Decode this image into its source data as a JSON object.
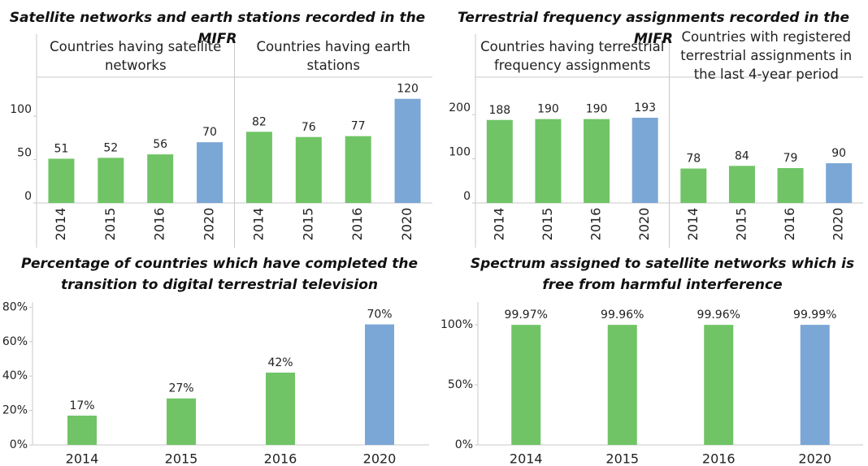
{
  "chart_data": [
    {
      "type": "bar",
      "title": "Satellite networks and earth stations recorded in the MIFR",
      "ylim": [
        0,
        145
      ],
      "yticks": [
        0,
        50,
        100
      ],
      "panels": [
        {
          "title": "Countries having satellite networks",
          "categories": [
            "2014",
            "2015",
            "2016",
            "2020"
          ],
          "values": [
            51,
            52,
            56,
            70
          ],
          "colors": [
            "#70c466",
            "#70c466",
            "#70c466",
            "#7ba7d6"
          ]
        },
        {
          "title": "Countries having earth stations",
          "categories": [
            "2014",
            "2015",
            "2016",
            "2020"
          ],
          "values": [
            82,
            76,
            77,
            120
          ],
          "colors": [
            "#70c466",
            "#70c466",
            "#70c466",
            "#7ba7d6"
          ]
        }
      ]
    },
    {
      "type": "bar",
      "title": "Terrestrial frequency assignments recorded in the MIFR",
      "ylim": [
        0,
        285
      ],
      "yticks": [
        0,
        100,
        200
      ],
      "panels": [
        {
          "title": "Countries having terrestrial frequency assignments",
          "categories": [
            "2014",
            "2015",
            "2016",
            "2020"
          ],
          "values": [
            188,
            190,
            190,
            193
          ],
          "colors": [
            "#70c466",
            "#70c466",
            "#70c466",
            "#7ba7d6"
          ]
        },
        {
          "title": "Countries with registered terrestrial assignments in the last 4-year period",
          "categories": [
            "2014",
            "2015",
            "2016",
            "2020"
          ],
          "values": [
            78,
            84,
            79,
            90
          ],
          "colors": [
            "#70c466",
            "#70c466",
            "#70c466",
            "#7ba7d6"
          ]
        }
      ]
    },
    {
      "type": "bar",
      "title": "Percentage of countries which have completed the transition to digital terrestrial television",
      "ylim": [
        0,
        83
      ],
      "yticks": [
        {
          "value": 0,
          "label": "0%"
        },
        {
          "value": 20,
          "label": "20%"
        },
        {
          "value": 40,
          "label": "40%"
        },
        {
          "value": 60,
          "label": "60%"
        },
        {
          "value": 80,
          "label": "80%"
        }
      ],
      "panels": [
        {
          "categories": [
            "2014",
            "2015",
            "2016",
            "2020"
          ],
          "values": [
            17,
            27,
            42,
            70
          ],
          "value_labels": [
            "17%",
            "27%",
            "42%",
            "70%"
          ],
          "colors": [
            "#70c466",
            "#70c466",
            "#70c466",
            "#7ba7d6"
          ]
        }
      ]
    },
    {
      "type": "bar",
      "title": "Spectrum assigned to satellite networks which is free from harmful interference",
      "ylim": [
        0,
        119
      ],
      "yticks": [
        {
          "value": 0,
          "label": "0%"
        },
        {
          "value": 50,
          "label": "50%"
        },
        {
          "value": 100,
          "label": "100%"
        }
      ],
      "panels": [
        {
          "categories": [
            "2014",
            "2015",
            "2016",
            "2020"
          ],
          "values": [
            99.97,
            99.96,
            99.96,
            99.99
          ],
          "value_labels": [
            "99.97%",
            "99.96%",
            "99.96%",
            "99.99%"
          ],
          "colors": [
            "#70c466",
            "#70c466",
            "#70c466",
            "#7ba7d6"
          ]
        }
      ]
    }
  ]
}
